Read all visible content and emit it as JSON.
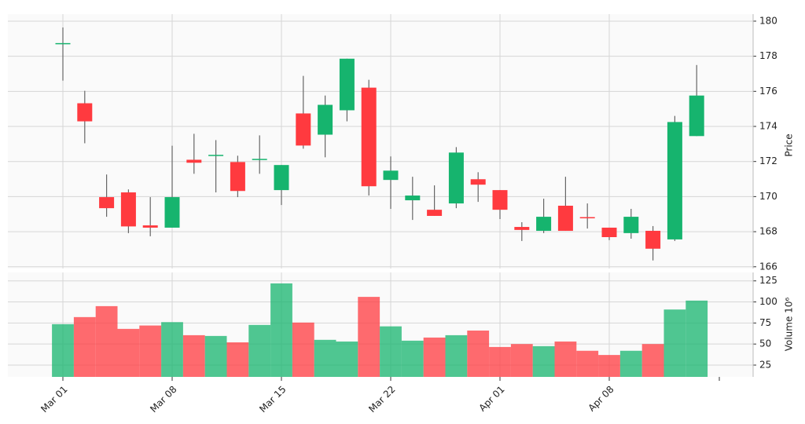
{
  "chart_data": {
    "type": "candlestick",
    "categories": [
      "Mar 01",
      null,
      null,
      null,
      null,
      "Mar 08",
      null,
      null,
      null,
      null,
      "Mar 15",
      null,
      null,
      null,
      null,
      "Mar 22",
      null,
      null,
      null,
      null,
      "Apr 01",
      null,
      null,
      null,
      null,
      "Apr 08",
      null,
      null,
      null,
      null
    ],
    "open": [
      178.7,
      175.32,
      169.97,
      170.24,
      168.36,
      168.23,
      172.1,
      172.34,
      171.97,
      172.1,
      170.37,
      174.74,
      173.53,
      174.92,
      176.21,
      170.95,
      169.79,
      169.25,
      169.61,
      170.99,
      170.37,
      168.27,
      168.05,
      169.48,
      168.83,
      168.23,
      167.92,
      168.05,
      167.56,
      173.45
    ],
    "high": [
      179.64,
      176.03,
      171.26,
      170.41,
      169.97,
      172.9,
      173.58,
      173.22,
      172.33,
      173.49,
      171.8,
      176.88,
      175.76,
      177.86,
      176.66,
      172.29,
      171.13,
      170.64,
      172.82,
      171.39,
      170.37,
      168.54,
      169.88,
      171.13,
      169.61,
      168.23,
      169.3,
      168.32,
      174.6,
      177.5
    ],
    "low": [
      176.61,
      173.04,
      168.85,
      167.92,
      167.74,
      168.23,
      171.3,
      170.24,
      169.97,
      171.3,
      169.52,
      172.73,
      172.24,
      174.29,
      170.06,
      169.3,
      168.67,
      168.9,
      169.34,
      169.7,
      168.72,
      167.47,
      167.92,
      168.05,
      168.18,
      167.52,
      167.6,
      166.36,
      167.47,
      173.45
    ],
    "close": [
      178.75,
      174.29,
      169.34,
      168.3,
      168.23,
      169.97,
      171.93,
      172.38,
      170.32,
      172.15,
      171.8,
      172.91,
      175.23,
      177.86,
      170.59,
      171.48,
      170.06,
      168.9,
      172.51,
      170.68,
      169.25,
      168.1,
      168.85,
      168.05,
      168.81,
      167.69,
      168.85,
      167.03,
      174.25,
      175.76
    ],
    "up_color": "#16b46e",
    "down_color": "#ff3a3f",
    "ylabel": "Price",
    "ylim": [
      165.9,
      180.4
    ],
    "yticks": [
      166,
      168,
      170,
      172,
      174,
      176,
      178,
      180
    ],
    "grid": true,
    "volume": {
      "ylabel": "Volume  10⁶",
      "values": [
        73.6,
        82,
        95,
        68,
        72,
        76,
        60.5,
        59.6,
        52,
        72.7,
        122,
        75.5,
        55,
        53,
        106,
        71,
        54,
        57.7,
        60.5,
        66,
        46.5,
        50,
        47.5,
        53,
        42,
        37,
        42,
        50,
        91,
        101.6
      ],
      "ylim": [
        11,
        135
      ],
      "yticks": [
        25,
        50,
        75,
        100,
        125
      ]
    }
  }
}
